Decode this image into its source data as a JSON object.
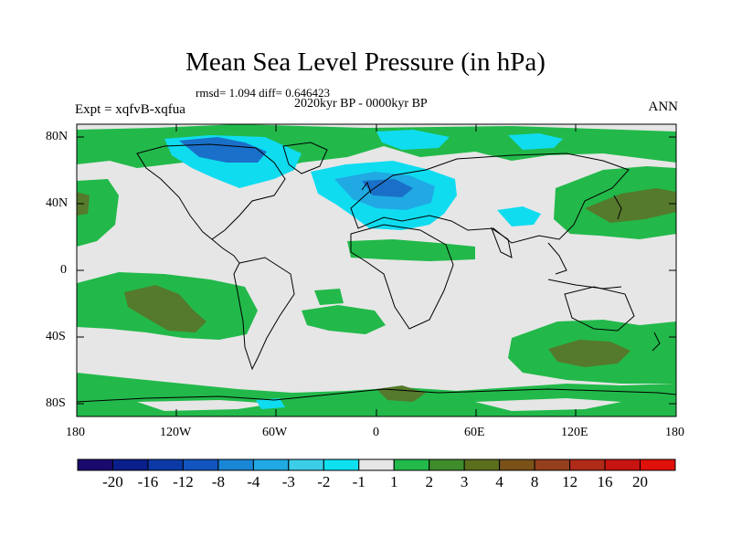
{
  "title": "Mean Sea Level Pressure (in hPa)",
  "stats": "rmsd= 1.094 diff= 0.646423",
  "period": "2020kyr BP - 0000kyr BP",
  "experiment": "Expt = xqfvB-xqfua",
  "season": "ANN",
  "lat_labels": [
    "80N",
    "40N",
    "0",
    "40S",
    "80S"
  ],
  "lon_labels": [
    "180",
    "120W",
    "60W",
    "0",
    "60E",
    "120E",
    "180"
  ],
  "colorbar": {
    "labels": [
      "-20",
      "-16",
      "-12",
      "-8",
      "-4",
      "-3",
      "-2",
      "-1",
      "1",
      "2",
      "3",
      "4",
      "8",
      "12",
      "16",
      "20"
    ],
    "colors": [
      "#1a0a6e",
      "#0a1e8c",
      "#0b3aa6",
      "#1255c0",
      "#1a86d6",
      "#20a9e3",
      "#3ccde8",
      "#0ee0f0",
      "#e6e6e6",
      "#22b94a",
      "#3e8c2a",
      "#5a6e1c",
      "#7a5218",
      "#94401c",
      "#b02a18",
      "#c81410",
      "#e0100a"
    ]
  },
  "colors": {
    "neutral": "#e6e6e6",
    "green": "#22b94a",
    "dark_green": "#557a2c",
    "light_blue": "#10dcf0",
    "mid_blue": "#20a9e3",
    "blue": "#1a70c8"
  }
}
